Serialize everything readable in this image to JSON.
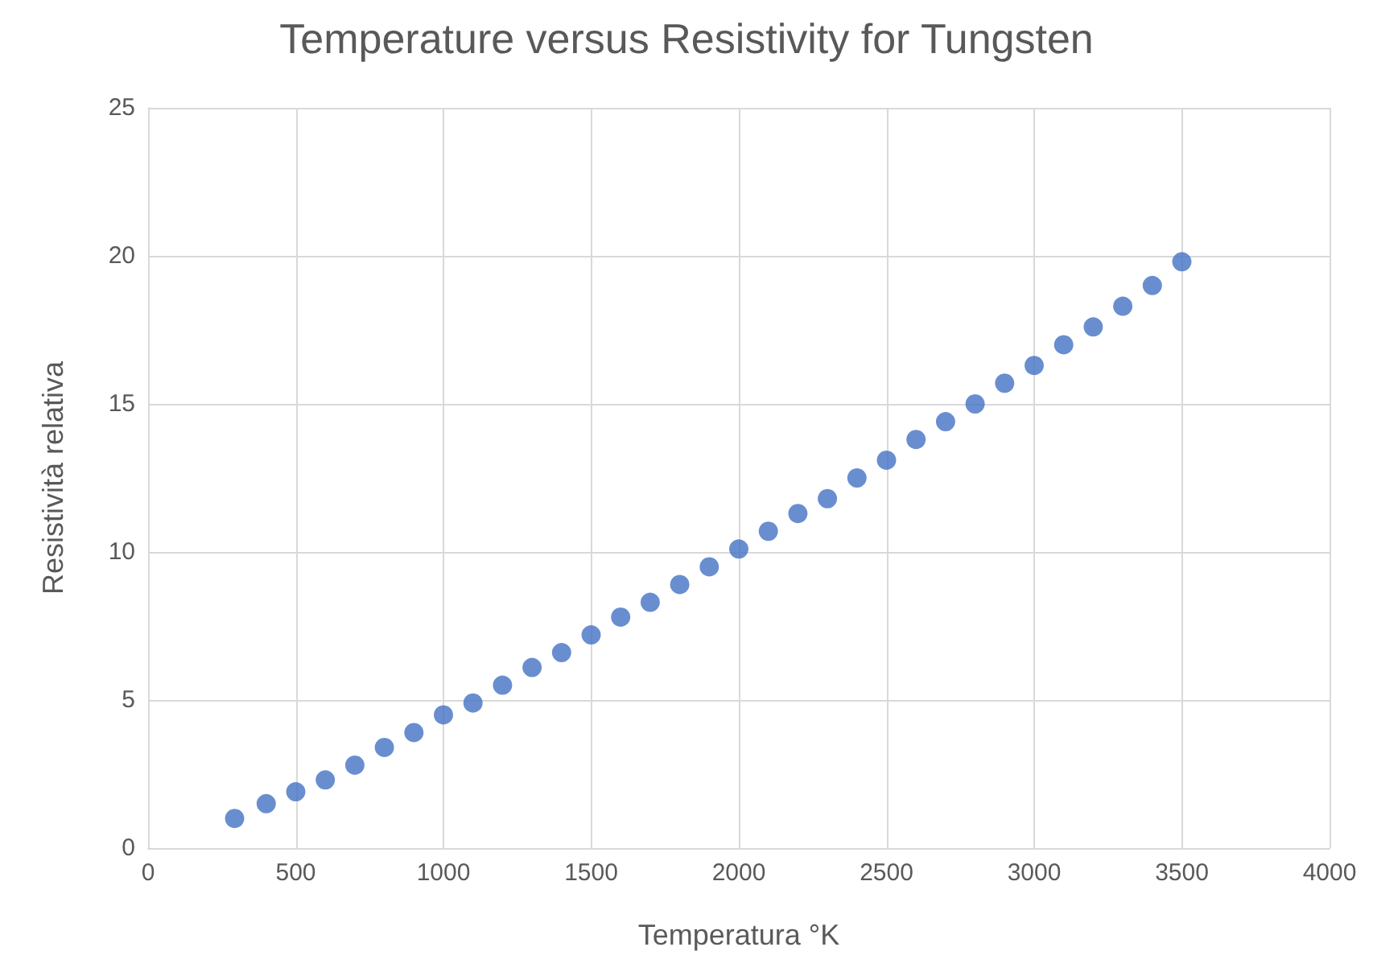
{
  "chart_data": {
    "type": "scatter",
    "title": "Temperature versus Resistivity for Tungsten",
    "xlabel": "Temperatura °K",
    "ylabel": "Resistività relativa",
    "x": [
      293,
      400,
      500,
      600,
      700,
      800,
      900,
      1000,
      1100,
      1200,
      1300,
      1400,
      1500,
      1600,
      1700,
      1800,
      1900,
      2000,
      2100,
      2200,
      2300,
      2400,
      2500,
      2600,
      2700,
      2800,
      2900,
      3000,
      3100,
      3200,
      3300,
      3400,
      3500
    ],
    "series": [
      {
        "color": "#4472c4",
        "values": [
          1.0,
          1.5,
          1.9,
          2.3,
          2.8,
          3.4,
          3.9,
          4.5,
          4.9,
          5.5,
          6.1,
          6.6,
          7.2,
          7.8,
          8.3,
          8.9,
          9.5,
          10.1,
          10.7,
          11.3,
          11.8,
          12.5,
          13.1,
          13.8,
          14.4,
          15.0,
          15.7,
          16.3,
          17.0,
          17.6,
          18.3,
          19.0,
          19.8
        ]
      }
    ],
    "xlim": [
      0,
      4000
    ],
    "xticks": [
      0,
      500,
      1000,
      1500,
      2000,
      2500,
      3000,
      3500,
      4000
    ],
    "ylim": [
      0,
      25
    ],
    "yticks": [
      0,
      5,
      10,
      15,
      20,
      25
    ],
    "grid": true,
    "marker": "circle"
  }
}
